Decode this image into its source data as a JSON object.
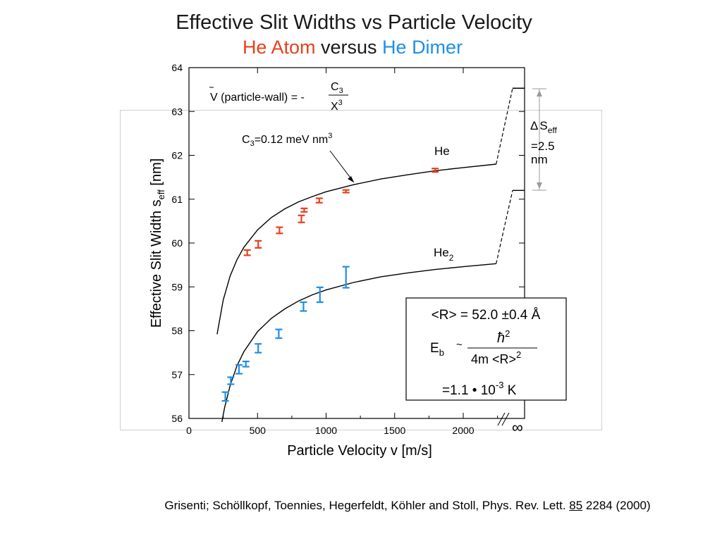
{
  "title": "Effective Slit Widths vs Particle Velocity",
  "subtitle": {
    "atom": "He Atom",
    "versus": "versus",
    "dimer": "He Dimer"
  },
  "colors": {
    "atom": "#e8401c",
    "dimer": "#1f8fe6",
    "curve": "#000000"
  },
  "citation": {
    "prefix": "Grisenti; Schöllkopf, Toennies,  Hegerfeldt,  Köhler and Stoll,  Phys. Rev. Lett. ",
    "volume": "85",
    "suffix": " 2284 (2000)"
  },
  "annotations": {
    "potential_lhs": "V (particle-wall) = -",
    "potential_num": "C",
    "potential_num_sub": "3",
    "potential_den": "X",
    "potential_den_sup": "3",
    "c3_label": "C",
    "c3_sub": "3",
    "c3_value": "=0.12 meV nm",
    "c3_sup": "3",
    "he_label": "He",
    "he2_label": "He",
    "he2_sub": "2",
    "delta_symbol": "Δ",
    "delta_s": "S",
    "delta_sub": "eff",
    "delta_value": "=2.5",
    "delta_unit": "nm",
    "infinity": "∞"
  },
  "result_box": {
    "line1": "<R> = 52.0 ±0.4 Å",
    "eb": "E",
    "eb_sub": "b",
    "approx": "~",
    "numerator": "ħ",
    "numerator_sup": "2",
    "denominator": "4m <R>",
    "denominator_sup": "2",
    "line3": "=1.1 • 10",
    "line3_sup": "-3",
    "line3_unit": " K"
  },
  "chart_data": {
    "type": "scatter",
    "xlabel": "Particle Velocity v [m/s]",
    "ylabel": "Effective Slit Width s",
    "ylabel_sub": "eff",
    "ylabel_unit": " [nm]",
    "xlim": [
      0,
      2450
    ],
    "ylim": [
      56,
      64
    ],
    "x_ticks": [
      "0",
      "500",
      "1000",
      "1500",
      "2000"
    ],
    "x_tick_values": [
      0,
      500,
      1000,
      1500,
      2000
    ],
    "y_ticks": [
      "56",
      "57",
      "58",
      "59",
      "60",
      "61",
      "62",
      "63",
      "64"
    ],
    "y_tick_values": [
      56,
      57,
      58,
      59,
      60,
      61,
      62,
      63,
      64
    ],
    "x_axis_break_label": "∞",
    "series": [
      {
        "name": "He",
        "points": [
          {
            "x": 425,
            "y": 59.78,
            "err": 0.06
          },
          {
            "x": 505,
            "y": 59.97,
            "err": 0.08
          },
          {
            "x": 660,
            "y": 60.29,
            "err": 0.07
          },
          {
            "x": 820,
            "y": 60.55,
            "err": 0.08
          },
          {
            "x": 840,
            "y": 60.75,
            "err": 0.04
          },
          {
            "x": 950,
            "y": 60.97,
            "err": 0.05
          },
          {
            "x": 1145,
            "y": 61.18,
            "err": 0.03
          },
          {
            "x": 1795,
            "y": 61.66,
            "err": 0.04
          }
        ],
        "fit": [
          [
            205,
            57.92
          ],
          [
            250,
            58.7
          ],
          [
            300,
            59.25
          ],
          [
            350,
            59.62
          ],
          [
            400,
            59.9
          ],
          [
            500,
            60.3
          ],
          [
            600,
            60.58
          ],
          [
            700,
            60.78
          ],
          [
            800,
            60.94
          ],
          [
            900,
            61.06
          ],
          [
            1000,
            61.17
          ],
          [
            1200,
            61.33
          ],
          [
            1400,
            61.46
          ],
          [
            1600,
            61.56
          ],
          [
            1800,
            61.65
          ],
          [
            2000,
            61.72
          ],
          [
            2240,
            61.8
          ]
        ],
        "asymptote": 63.53
      },
      {
        "name": "He2",
        "points": [
          {
            "x": 265,
            "y": 56.5,
            "err": 0.1
          },
          {
            "x": 305,
            "y": 56.86,
            "err": 0.08
          },
          {
            "x": 365,
            "y": 57.12,
            "err": 0.1
          },
          {
            "x": 415,
            "y": 57.24,
            "err": 0.06
          },
          {
            "x": 505,
            "y": 57.6,
            "err": 0.1
          },
          {
            "x": 655,
            "y": 57.93,
            "err": 0.1
          },
          {
            "x": 835,
            "y": 58.55,
            "err": 0.1
          },
          {
            "x": 955,
            "y": 58.82,
            "err": 0.17
          },
          {
            "x": 1145,
            "y": 59.22,
            "err": 0.24
          }
        ],
        "fit": [
          [
            240,
            55.92
          ],
          [
            260,
            56.25
          ],
          [
            300,
            56.75
          ],
          [
            350,
            57.2
          ],
          [
            400,
            57.52
          ],
          [
            500,
            57.98
          ],
          [
            600,
            58.28
          ],
          [
            700,
            58.5
          ],
          [
            800,
            58.68
          ],
          [
            900,
            58.82
          ],
          [
            1000,
            58.93
          ],
          [
            1200,
            59.1
          ],
          [
            1400,
            59.23
          ],
          [
            1600,
            59.32
          ],
          [
            1800,
            59.4
          ],
          [
            2000,
            59.46
          ],
          [
            2240,
            59.53
          ]
        ],
        "asymptote": 61.2
      }
    ]
  }
}
